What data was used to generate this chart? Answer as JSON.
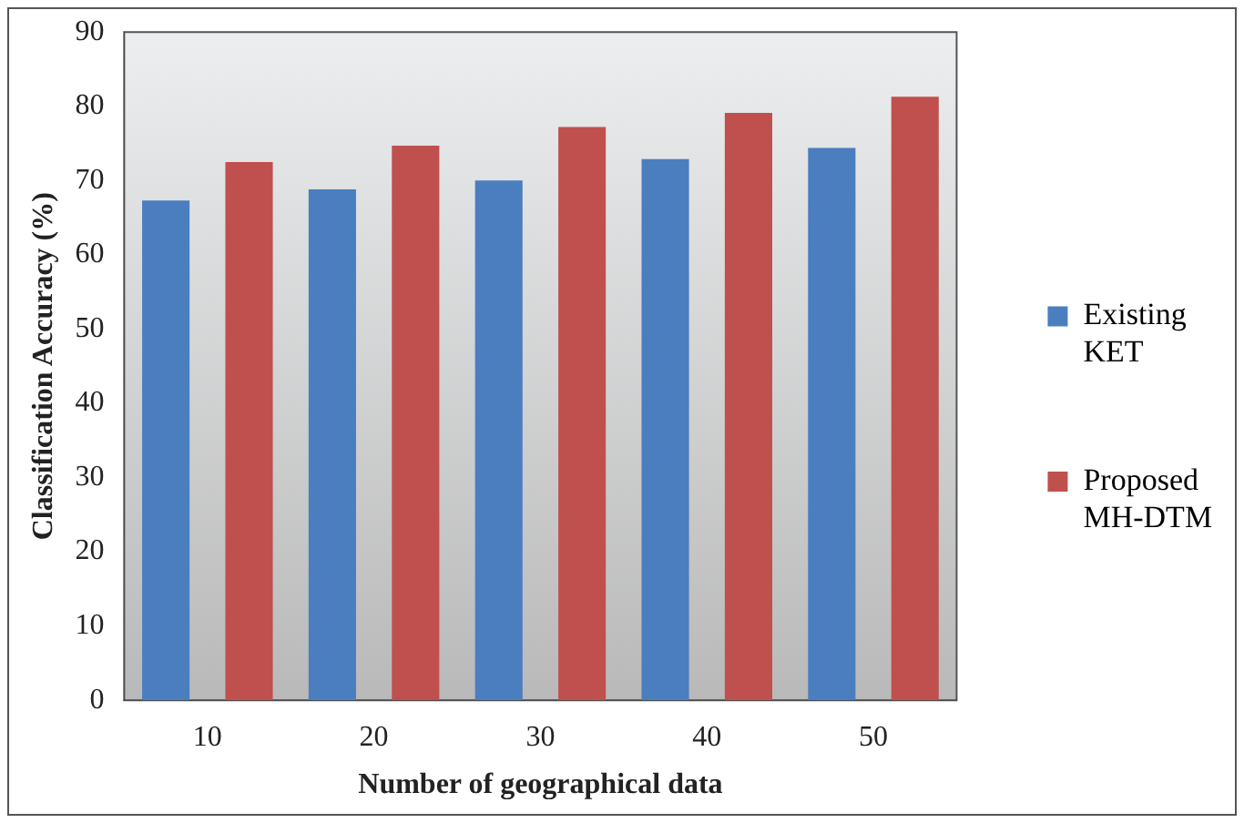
{
  "chart_data": {
    "type": "bar",
    "xlabel": "Number of geographical data",
    "ylabel": "Classification Accuracy (%)",
    "categories": [
      "10",
      "20",
      "30",
      "40",
      "50"
    ],
    "series": [
      {
        "name": "Existing KET",
        "color": "#4a7ebf",
        "values": [
          67.3,
          68.8,
          70.0,
          72.9,
          74.4
        ]
      },
      {
        "name": "Proposed MH-DTM",
        "color": "#c0504d",
        "values": [
          72.5,
          74.7,
          77.2,
          79.1,
          81.3
        ]
      }
    ],
    "ylim": [
      0,
      90
    ],
    "yticks": [
      0,
      10,
      20,
      30,
      40,
      50,
      60,
      70,
      80,
      90
    ],
    "grid": false,
    "legend": "right"
  }
}
